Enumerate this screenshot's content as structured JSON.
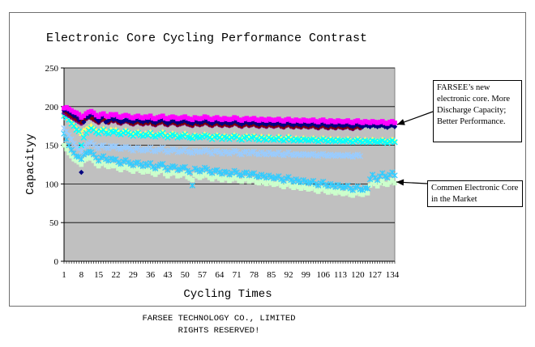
{
  "footer": {
    "line1": "FARSEE TECHNOLOGY CO., LIMITED",
    "line2": "RIGHTS RESERVED!"
  },
  "annotations": {
    "farsee": "FARSEE’s new electronic core. More Discharge Capacity; Better Performance.",
    "common": "Commen Electronic Core in the Market"
  },
  "chart_data": {
    "type": "scatter",
    "title": "Electronic Core Cycling Performance Contrast",
    "xlabel": "Cycling Times",
    "ylabel": "Capacityy",
    "xlim": [
      1,
      135
    ],
    "ylim": [
      0,
      250
    ],
    "x_ticks": [
      "1",
      "8",
      "15",
      "22",
      "29",
      "36",
      "43",
      "50",
      "57",
      "64",
      "71",
      "78",
      "85",
      "92",
      "99",
      "106",
      "113",
      "120",
      "127",
      "134"
    ],
    "y_ticks": [
      "0",
      "50",
      "100",
      "150",
      "200",
      "250"
    ],
    "grid": "horizontal",
    "plot_background": "#c0c0c0",
    "series": [
      {
        "color": "#000080",
        "marker": "diamond",
        "values": [
          195,
          196,
          193,
          191,
          188,
          187,
          183,
          115,
          180,
          186,
          187,
          190,
          189,
          184,
          181,
          185,
          187,
          180,
          182,
          185,
          183,
          184,
          182,
          180,
          181,
          183,
          182,
          181,
          180,
          182,
          183,
          181,
          180,
          182,
          181,
          183,
          180,
          179,
          181,
          182,
          183,
          180,
          178,
          180,
          182,
          181,
          179,
          180,
          181,
          182,
          180,
          179,
          178,
          181,
          180,
          179,
          180,
          182,
          181,
          179,
          178,
          180,
          181,
          179,
          178,
          180,
          179,
          178,
          179,
          181,
          180,
          178,
          177,
          179,
          180,
          178,
          179,
          180,
          178,
          177,
          179,
          178,
          177,
          179,
          178,
          177,
          178,
          179,
          177,
          176,
          178,
          179,
          177,
          176,
          178,
          177,
          176,
          178,
          177,
          176,
          177,
          178,
          176,
          175,
          177,
          178,
          176,
          175,
          177,
          176,
          175,
          177,
          176,
          175,
          176,
          177,
          175,
          174,
          176,
          177,
          175,
          174,
          176,
          175,
          174,
          176,
          175,
          174,
          175,
          176,
          174,
          173,
          175,
          176,
          174
        ]
      },
      {
        "color": "#ff00ff",
        "marker": "square",
        "values": [
          198,
          199,
          197,
          195,
          193,
          192,
          190,
          186,
          188,
          191,
          193,
          194,
          192,
          189,
          187,
          190,
          191,
          188,
          187,
          190,
          189,
          190,
          187,
          186,
          188,
          189,
          188,
          186,
          185,
          187,
          188,
          186,
          185,
          187,
          186,
          188,
          185,
          184,
          186,
          187,
          188,
          185,
          184,
          186,
          187,
          186,
          184,
          185,
          186,
          187,
          185,
          184,
          183,
          186,
          185,
          184,
          185,
          187,
          186,
          184,
          183,
          185,
          186,
          184,
          183,
          185,
          184,
          183,
          184,
          186,
          185,
          183,
          182,
          184,
          185,
          183,
          184,
          185,
          183,
          182,
          184,
          183,
          182,
          184,
          183,
          182,
          183,
          184,
          182,
          181,
          183,
          184,
          182,
          181,
          183,
          182,
          181,
          183,
          182,
          181,
          182,
          183,
          181,
          180,
          182,
          183,
          181,
          180,
          182,
          181,
          180,
          182,
          181,
          180,
          181,
          182,
          180,
          179,
          181,
          182,
          180,
          179,
          181,
          180,
          179,
          181,
          180,
          179,
          180,
          181,
          179,
          178,
          180,
          181,
          179
        ]
      },
      {
        "color": "#ffff66",
        "marker": "triangle",
        "values": [
          190,
          188,
          185,
          180,
          176,
          172,
          168,
          165,
          170,
          172,
          174,
          176,
          173,
          170,
          168,
          171,
          172,
          169,
          168,
          171,
          170,
          171,
          168,
          166,
          168,
          170,
          168,
          166,
          164,
          167,
          168,
          165,
          164,
          166,
          165,
          168,
          164,
          163,
          165,
          166,
          168,
          164,
          162,
          164,
          166,
          165,
          162,
          163,
          164,
          166,
          163,
          162,
          161,
          164,
          163,
          162,
          163,
          165,
          164,
          162,
          160,
          163,
          164,
          162,
          160,
          163,
          162,
          160,
          162,
          164,
          163,
          160,
          159,
          162,
          163,
          160,
          162,
          163,
          160,
          159,
          162,
          160,
          159,
          162,
          160,
          159,
          160,
          162,
          159,
          158,
          160,
          162,
          159,
          158,
          160,
          159,
          158,
          160,
          159,
          158,
          159,
          160,
          158,
          157,
          159,
          160,
          158,
          157,
          159,
          158,
          157,
          159,
          158,
          157,
          158,
          159,
          157,
          156,
          158,
          159,
          157,
          156,
          158,
          157,
          156,
          158,
          157,
          156,
          157,
          158,
          156,
          155,
          157,
          158,
          156
        ]
      },
      {
        "color": "#00ffff",
        "marker": "x",
        "values": [
          188,
          186,
          183,
          178,
          175,
          170,
          168,
          150,
          160,
          166,
          169,
          172,
          170,
          167,
          165,
          168,
          170,
          166,
          165,
          168,
          167,
          168,
          165,
          164,
          166,
          168,
          166,
          164,
          162,
          165,
          166,
          163,
          162,
          164,
          163,
          166,
          162,
          161,
          163,
          164,
          166,
          162,
          160,
          162,
          164,
          163,
          160,
          161,
          162,
          164,
          161,
          160,
          159,
          162,
          161,
          160,
          161,
          163,
          162,
          160,
          158,
          161,
          162,
          160,
          158,
          161,
          160,
          158,
          160,
          162,
          161,
          158,
          157,
          160,
          161,
          158,
          160,
          161,
          158,
          157,
          160,
          158,
          157,
          160,
          158,
          157,
          158,
          160,
          157,
          156,
          158,
          160,
          157,
          156,
          158,
          157,
          156,
          158,
          157,
          156,
          157,
          158,
          156,
          155,
          157,
          158,
          156,
          155,
          157,
          156,
          155,
          157,
          156,
          155,
          156,
          157,
          155,
          154,
          156,
          157,
          155,
          154,
          156,
          155,
          154,
          156,
          155,
          154,
          155,
          156,
          154,
          153,
          155,
          156,
          154
        ]
      },
      {
        "color": "#800080",
        "marker": "circle",
        "values": [
          192,
          190,
          188,
          186,
          184,
          182,
          180,
          178,
          182,
          184,
          186,
          185,
          183,
          181,
          179,
          182,
          183,
          180,
          179,
          182,
          181,
          182,
          179,
          178,
          180,
          181,
          180,
          178,
          177,
          179,
          180,
          178,
          177,
          179,
          178,
          180,
          177,
          176,
          178,
          179,
          180,
          177,
          176,
          178,
          179,
          178,
          176,
          177,
          178,
          179,
          177,
          176,
          175,
          178,
          177,
          176,
          177,
          179,
          178,
          176,
          175,
          177,
          178,
          176,
          175,
          177,
          176,
          175,
          176,
          178,
          177,
          175,
          174,
          176,
          177,
          175,
          176,
          177,
          175,
          174,
          176,
          175,
          174,
          176,
          175,
          174,
          175,
          176,
          174,
          173,
          175,
          176,
          174,
          173,
          175,
          174,
          173,
          175,
          174,
          173,
          174,
          175,
          173,
          172,
          174,
          175,
          173,
          172,
          174,
          173,
          172,
          174,
          173,
          172,
          173,
          174,
          172,
          171,
          173,
          174,
          172
        ]
      },
      {
        "color": "#800000",
        "marker": "circle",
        "values": [
          196,
          193,
          190,
          188,
          186,
          184,
          182,
          180,
          183,
          185,
          187,
          186,
          184,
          182,
          180,
          183,
          184,
          181,
          180,
          183,
          182,
          183,
          180,
          179,
          181,
          182,
          181,
          179,
          178,
          180,
          181,
          179,
          178,
          180,
          179,
          181,
          178,
          177,
          179,
          180,
          181,
          178,
          177,
          179,
          180,
          179,
          177,
          178,
          179,
          180,
          178,
          177,
          176,
          179,
          178,
          177,
          178,
          180,
          179,
          177,
          176,
          178,
          179,
          177,
          176,
          178,
          177,
          176,
          177,
          179,
          178,
          176,
          175,
          177,
          178,
          176,
          177,
          178,
          176,
          175,
          177,
          176,
          175,
          177,
          176,
          175,
          176,
          177,
          175,
          174,
          176,
          177,
          175,
          174,
          176,
          175,
          174,
          176,
          175,
          174,
          175,
          176,
          174,
          173,
          175,
          176,
          174,
          173,
          175,
          174,
          173,
          175,
          174,
          173,
          174,
          175,
          173,
          172,
          174,
          175,
          173
        ]
      },
      {
        "color": "#99ccff",
        "marker": "star",
        "values": [
          172,
          168,
          163,
          158,
          152,
          148,
          146,
          142,
          148,
          150,
          152,
          154,
          151,
          148,
          146,
          149,
          150,
          147,
          146,
          149,
          148,
          149,
          146,
          145,
          147,
          148,
          147,
          145,
          143,
          146,
          147,
          144,
          143,
          145,
          144,
          147,
          143,
          142,
          144,
          145,
          147,
          143,
          141,
          143,
          145,
          144,
          141,
          142,
          143,
          145,
          142,
          141,
          140,
          143,
          142,
          141,
          142,
          144,
          143,
          141,
          139,
          142,
          143,
          141,
          139,
          142,
          141,
          139,
          141,
          143,
          142,
          139,
          138,
          141,
          142,
          139,
          141,
          142,
          139,
          138,
          141,
          139,
          138,
          141,
          139,
          138,
          139,
          141,
          138,
          137,
          139,
          141,
          138,
          137,
          139,
          138,
          137,
          139,
          138,
          137,
          138,
          139,
          137,
          136,
          138,
          139,
          137,
          136,
          138,
          137,
          136,
          138,
          137,
          136,
          137,
          138,
          136,
          135,
          137,
          138,
          136
        ]
      },
      {
        "color": "#33ccff",
        "marker": "star",
        "values": [
          165,
          158,
          150,
          144,
          140,
          136,
          135,
          132,
          138,
          140,
          142,
          141,
          138,
          134,
          130,
          134,
          136,
          132,
          130,
          133,
          131,
          132,
          128,
          126,
          129,
          131,
          128,
          126,
          124,
          127,
          128,
          125,
          123,
          126,
          124,
          127,
          122,
          120,
          123,
          125,
          126,
          121,
          118,
          121,
          123,
          122,
          118,
          119,
          121,
          122,
          117,
          115,
          98,
          120,
          118,
          116,
          118,
          121,
          119,
          116,
          114,
          117,
          118,
          115,
          113,
          116,
          115,
          112,
          114,
          117,
          115,
          112,
          111,
          114,
          115,
          111,
          113,
          114,
          110,
          109,
          112,
          110,
          108,
          111,
          109,
          107,
          108,
          110,
          106,
          104,
          107,
          109,
          105,
          103,
          106,
          104,
          102,
          105,
          103,
          101,
          102,
          104,
          100,
          98,
          101,
          103,
          99,
          97,
          100,
          98,
          96,
          99,
          97,
          95,
          96,
          98,
          94,
          92,
          95,
          97,
          93,
          92,
          95,
          94,
          106,
          112,
          108,
          105,
          110,
          114,
          110,
          108,
          112,
          115,
          111
        ]
      },
      {
        "color": "#ccffcc",
        "marker": "square",
        "values": [
          150,
          145,
          140,
          136,
          132,
          130,
          128,
          125,
          130,
          132,
          134,
          133,
          130,
          126,
          123,
          126,
          128,
          124,
          122,
          125,
          123,
          124,
          120,
          118,
          121,
          123,
          120,
          118,
          116,
          119,
          120,
          117,
          115,
          118,
          116,
          119,
          114,
          112,
          115,
          117,
          118,
          113,
          110,
          113,
          115,
          114,
          110,
          111,
          113,
          114,
          109,
          107,
          105,
          112,
          110,
          108,
          110,
          113,
          111,
          108,
          106,
          109,
          110,
          107,
          105,
          108,
          107,
          104,
          106,
          109,
          107,
          104,
          103,
          106,
          107,
          103,
          105,
          106,
          102,
          101,
          104,
          102,
          100,
          103,
          101,
          99,
          100,
          102,
          98,
          96,
          99,
          101,
          97,
          95,
          98,
          96,
          94,
          97,
          95,
          93,
          94,
          96,
          92,
          90,
          93,
          95,
          91,
          89,
          92,
          90,
          88,
          91,
          89,
          87,
          88,
          90,
          86,
          85,
          88,
          90,
          87,
          86,
          89,
          88,
          98,
          102,
          100,
          97,
          101,
          104,
          100,
          99,
          102,
          105,
          101
        ]
      }
    ]
  }
}
